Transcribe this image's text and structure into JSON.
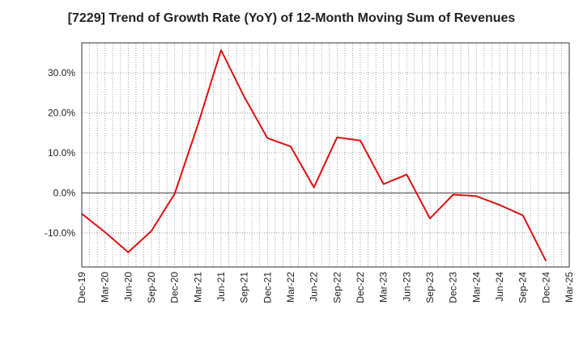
{
  "chart_data": {
    "type": "line",
    "title": "[7229]  Trend of Growth Rate (YoY) of 12-Month Moving Sum of Revenues",
    "xlabel": "",
    "ylabel": "",
    "x_ticks": [
      "Dec-19",
      "Mar-20",
      "Jun-20",
      "Sep-20",
      "Dec-20",
      "Mar-21",
      "Jun-21",
      "Sep-21",
      "Dec-21",
      "Mar-22",
      "Jun-22",
      "Sep-22",
      "Dec-22",
      "Mar-23",
      "Jun-23",
      "Sep-23",
      "Dec-23",
      "Mar-24",
      "Jun-24",
      "Sep-24",
      "Dec-24",
      "Mar-25"
    ],
    "y_ticks": [
      30,
      20,
      10,
      0,
      -10
    ],
    "y_tick_labels": [
      "30.0%",
      "20.0%",
      "10.0%",
      "0.0%",
      "-10.0%"
    ],
    "ylim": [
      -18.5,
      37.5
    ],
    "grid": true,
    "series": [
      {
        "color": "#dd1111",
        "values": [
          -5.2,
          -9.8,
          -14.8,
          -9.5,
          -0.2,
          17.0,
          35.7,
          24.0,
          13.7,
          11.6,
          1.4,
          13.9,
          13.1,
          2.2,
          4.6,
          -6.4,
          -0.4,
          -0.8,
          -3.0,
          -5.6,
          -17.0
        ]
      }
    ]
  }
}
